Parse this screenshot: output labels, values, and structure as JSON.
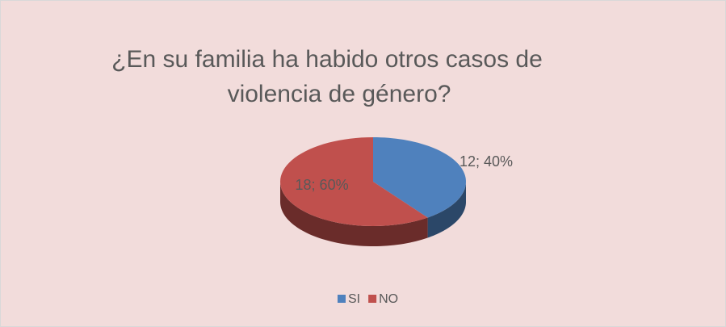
{
  "chart_data": {
    "type": "pie",
    "title": [
      "¿En su familia ha habido otros casos de",
      "violencia de género?"
    ],
    "categories": [
      "SI",
      "NO"
    ],
    "values": [
      12,
      18
    ],
    "value_labels": [
      "12; 40%",
      "18; 60%"
    ],
    "colors": [
      "#4f81bd",
      "#c0504d"
    ],
    "legend": "bottom"
  }
}
